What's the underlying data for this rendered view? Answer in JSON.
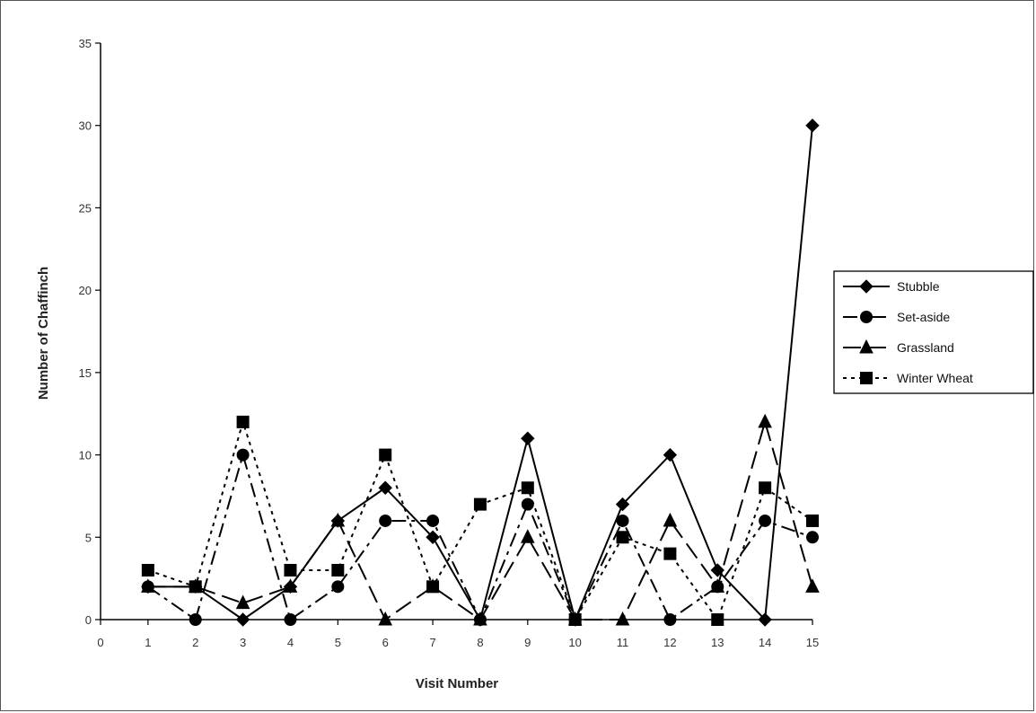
{
  "chart_data": {
    "type": "line",
    "xlabel": "Visit Number",
    "ylabel": "Number of Chaffinch",
    "xlim": [
      0,
      15
    ],
    "ylim": [
      0,
      35
    ],
    "x_ticks": [
      0,
      1,
      2,
      3,
      4,
      5,
      6,
      7,
      8,
      9,
      10,
      11,
      12,
      13,
      14,
      15
    ],
    "y_ticks": [
      0,
      5,
      10,
      15,
      20,
      25,
      30,
      35
    ],
    "grid": false,
    "legend_position": "right",
    "x": [
      1,
      2,
      3,
      4,
      5,
      6,
      7,
      8,
      9,
      10,
      11,
      12,
      13,
      14,
      15
    ],
    "series": [
      {
        "name": "Stubble",
        "marker": "diamond",
        "line": "solid",
        "color": "#000000",
        "values": [
          2,
          2,
          0,
          2,
          6,
          8,
          5,
          0,
          11,
          0,
          7,
          10,
          3,
          0,
          30
        ]
      },
      {
        "name": "Set-aside",
        "marker": "circle",
        "line": "dashdot",
        "color": "#000000",
        "values": [
          2,
          0,
          10,
          0,
          2,
          6,
          6,
          0,
          7,
          0,
          6,
          0,
          2,
          6,
          5
        ]
      },
      {
        "name": "Grassland",
        "marker": "triangle",
        "line": "longdash",
        "color": "#000000",
        "values": [
          2,
          2,
          1,
          2,
          6,
          0,
          2,
          0,
          5,
          0,
          0,
          6,
          2,
          12,
          2
        ]
      },
      {
        "name": "Winter Wheat",
        "marker": "square",
        "line": "dotted",
        "color": "#000000",
        "values": [
          3,
          2,
          12,
          3,
          3,
          10,
          2,
          7,
          8,
          0,
          5,
          4,
          0,
          8,
          6
        ]
      }
    ]
  }
}
